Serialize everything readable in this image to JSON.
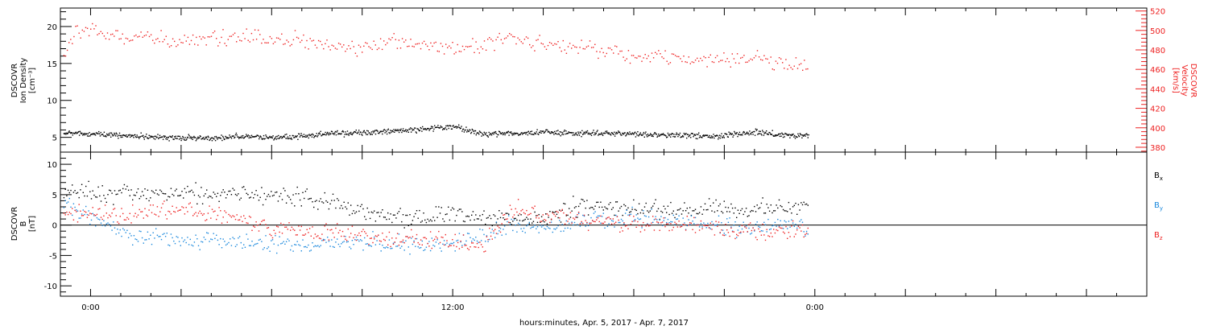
{
  "colors": {
    "black": "#000000",
    "red": "#ee2222",
    "blue": "#1a88dd"
  },
  "xlabel": "hours:minutes, Apr.  5, 2017 - Apr.  7, 2017",
  "x_tick_labels": [
    "0:00",
    "12:00",
    "0:00"
  ],
  "chart_data": [
    {
      "type": "scatter",
      "panel": "top",
      "ylabel_left": [
        "DSCOVR",
        "Ion Density",
        "[cm⁻³]"
      ],
      "ylabel_right": [
        "DSCOVR",
        "Velocity",
        "[km/s]"
      ],
      "left_axis": {
        "ylim": [
          3,
          22.5
        ],
        "ticks": [
          5,
          10,
          15,
          20
        ]
      },
      "right_axis": {
        "ylim": [
          375,
          523
        ],
        "ticks": [
          380,
          400,
          420,
          440,
          460,
          480,
          500,
          520
        ]
      },
      "xlim_hours": [
        -1,
        35
      ],
      "series": [
        {
          "axis": "left",
          "color": "black",
          "x_hours": [
            -0.9,
            -0.5,
            0,
            1,
            2,
            3,
            4,
            5,
            6,
            7,
            8,
            9,
            10,
            11,
            12,
            13,
            14,
            15,
            16,
            17,
            18,
            19,
            20,
            21,
            22,
            23,
            23.8
          ],
          "values": [
            5.8,
            5.6,
            5.5,
            5.3,
            5.2,
            5.0,
            5.0,
            5.2,
            5.0,
            5.2,
            5.6,
            5.7,
            5.9,
            6.2,
            6.5,
            5.5,
            5.6,
            5.8,
            5.6,
            5.6,
            5.5,
            5.4,
            5.3,
            5.3,
            5.8,
            5.4,
            5.2
          ]
        },
        {
          "axis": "right",
          "color": "red",
          "x_hours": [
            -0.9,
            -0.5,
            0,
            1,
            2,
            3,
            4,
            5,
            6,
            7,
            8,
            9,
            10,
            11,
            12,
            13,
            14,
            15,
            16,
            17,
            18,
            19,
            20,
            21,
            22,
            23,
            23.8
          ],
          "values": [
            470,
            503,
            500,
            494,
            492,
            489,
            490,
            494,
            493,
            490,
            481,
            485,
            490,
            485,
            483,
            488,
            493,
            488,
            484,
            480,
            474,
            473,
            470,
            471,
            470,
            466,
            462
          ]
        }
      ]
    },
    {
      "type": "scatter",
      "panel": "bottom",
      "ylabel_left": [
        "DSCOVR",
        "B",
        "[nT]"
      ],
      "left_axis": {
        "ylim": [
          -11.7,
          12
        ],
        "ticks": [
          -10,
          -5,
          0,
          5,
          10
        ]
      },
      "xlim_hours": [
        -1,
        35
      ],
      "legend_position": "right",
      "series": [
        {
          "name": "Bx",
          "color": "black",
          "x_hours": [
            -0.9,
            0,
            1,
            2,
            3,
            4,
            5,
            6,
            7,
            8,
            9,
            10,
            11,
            12,
            13,
            14,
            15,
            16,
            17,
            18,
            19,
            20,
            21,
            22,
            23,
            23.8
          ],
          "values": [
            5.2,
            5.5,
            5.4,
            5.2,
            5.3,
            5.2,
            5.0,
            4.8,
            4.6,
            3.5,
            2.5,
            1.0,
            1.5,
            2.0,
            1.5,
            0.8,
            1.5,
            3.0,
            3.2,
            2.8,
            2.5,
            2.7,
            2.9,
            2.8,
            3.0,
            3.5
          ]
        },
        {
          "name": "By",
          "color": "blue",
          "x_hours": [
            -0.9,
            0,
            1,
            2,
            3,
            4,
            5,
            6,
            7,
            8,
            9,
            10,
            11,
            12,
            13,
            14,
            15,
            16,
            17,
            18,
            19,
            20,
            21,
            22,
            23,
            23.8
          ],
          "values": [
            3.5,
            1.5,
            -1.0,
            -2.0,
            -2.5,
            -2.3,
            -2.8,
            -3.0,
            -3.2,
            -2.8,
            -2.5,
            -3.0,
            -3.0,
            -2.8,
            -1.5,
            0.0,
            -0.5,
            0.5,
            1.0,
            1.5,
            0.8,
            0.5,
            0.0,
            -0.5,
            0.5,
            -0.5
          ]
        },
        {
          "name": "Bz",
          "color": "red",
          "x_hours": [
            -0.9,
            0,
            1,
            2,
            3,
            4,
            5,
            6,
            7,
            8,
            9,
            10,
            11,
            12,
            13,
            14,
            15,
            16,
            17,
            18,
            19,
            20,
            21,
            22,
            23,
            23.8
          ],
          "values": [
            2.5,
            2.0,
            1.5,
            2.0,
            2.5,
            2.0,
            1.0,
            -0.5,
            -1.0,
            -1.0,
            -1.5,
            -2.5,
            -2.0,
            -2.5,
            -3.5,
            3.0,
            1.5,
            1.0,
            0.5,
            0.2,
            0.5,
            0.0,
            -0.8,
            -1.0,
            -1.0,
            -1.5
          ]
        }
      ]
    }
  ]
}
